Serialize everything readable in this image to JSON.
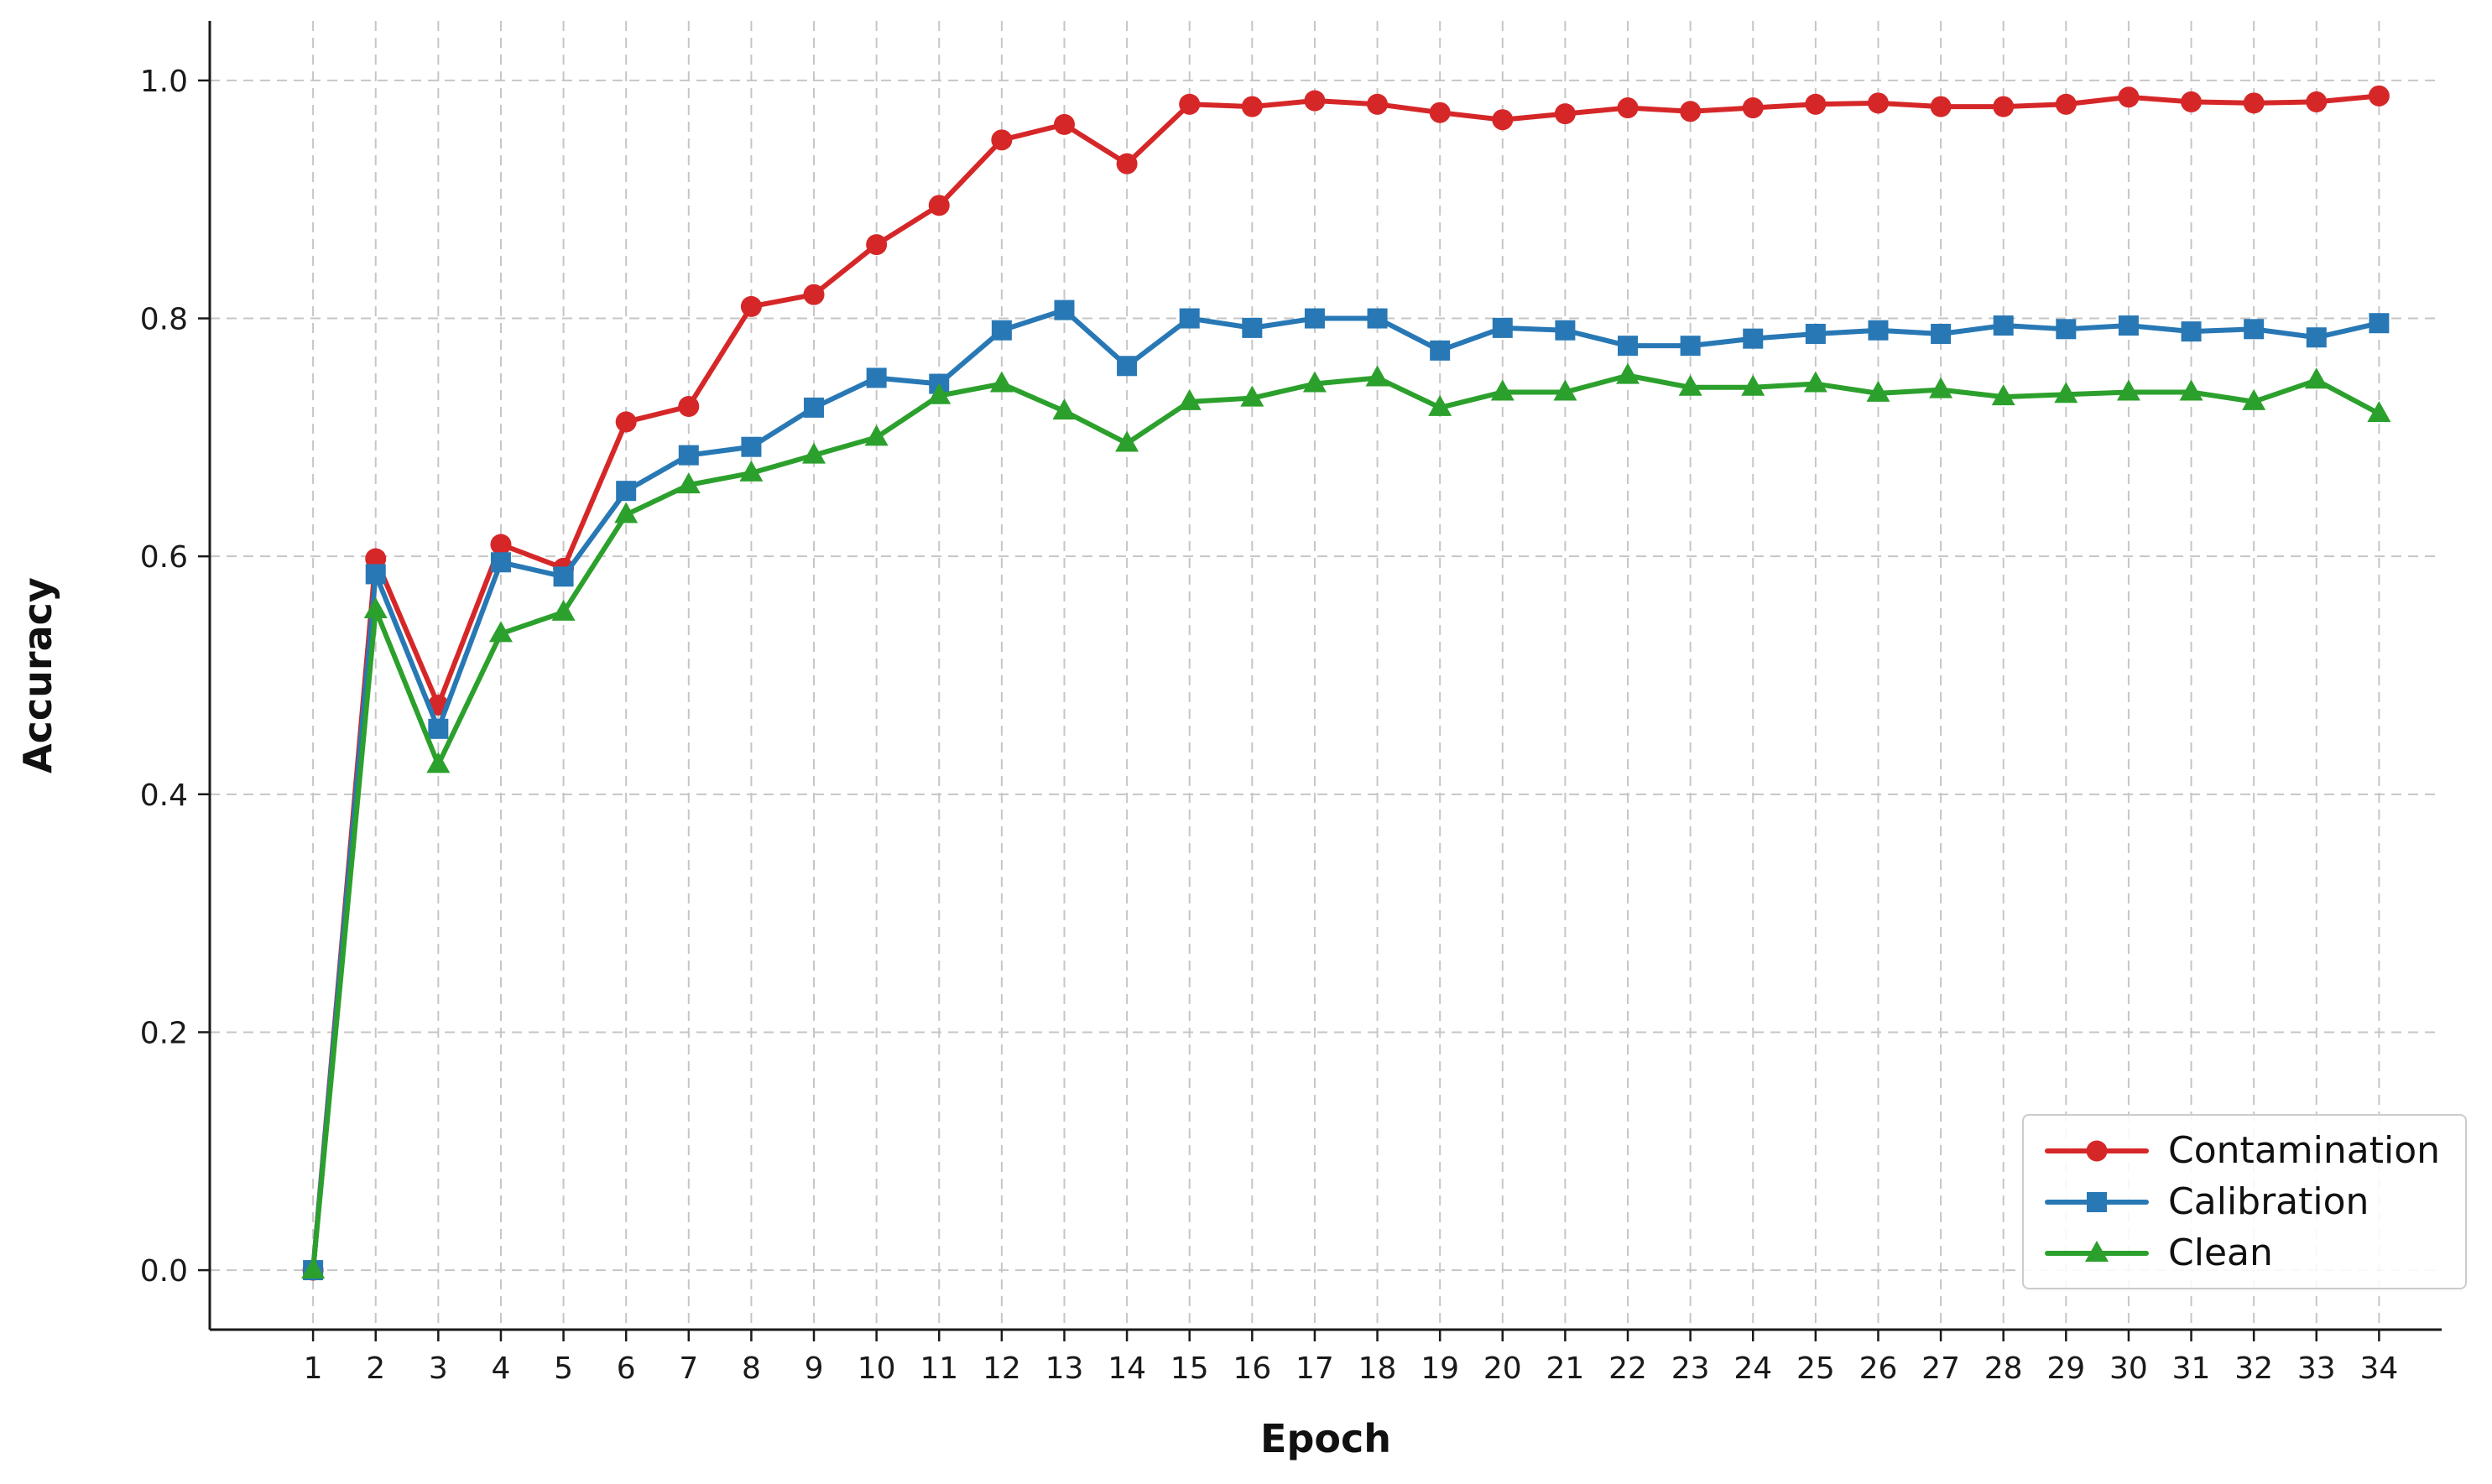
{
  "chart_data": {
    "type": "line",
    "title": "",
    "xlabel": "Epoch",
    "ylabel": "Accuracy",
    "x": [
      1,
      2,
      3,
      4,
      5,
      6,
      7,
      8,
      9,
      10,
      11,
      12,
      13,
      14,
      15,
      16,
      17,
      18,
      19,
      20,
      21,
      22,
      23,
      24,
      25,
      26,
      27,
      28,
      29,
      30,
      31,
      32,
      33,
      34
    ],
    "yticks": [
      0.0,
      0.2,
      0.4,
      0.6,
      0.8,
      1.0
    ],
    "ylim": [
      0.0,
      1.0
    ],
    "grid": "dashed-both-axes",
    "grid_color": "#c6c6c6",
    "spine_color": "#1a1a1a",
    "legend_position": "lower right",
    "series": [
      {
        "name": "Contamination",
        "color": "#d62728",
        "marker": "circle",
        "values": [
          0.0,
          0.598,
          0.475,
          0.61,
          0.59,
          0.713,
          0.726,
          0.81,
          0.82,
          0.862,
          0.895,
          0.95,
          0.963,
          0.93,
          0.98,
          0.978,
          0.983,
          0.98,
          0.973,
          0.967,
          0.972,
          0.977,
          0.974,
          0.977,
          0.98,
          0.981,
          0.978,
          0.978,
          0.98,
          0.986,
          0.982,
          0.981,
          0.982,
          0.987
        ]
      },
      {
        "name": "Calibration",
        "color": "#2878b5",
        "marker": "square",
        "values": [
          0.0,
          0.585,
          0.455,
          0.595,
          0.583,
          0.655,
          0.685,
          0.692,
          0.725,
          0.75,
          0.745,
          0.79,
          0.807,
          0.76,
          0.8,
          0.792,
          0.8,
          0.8,
          0.773,
          0.792,
          0.79,
          0.777,
          0.777,
          0.783,
          0.787,
          0.79,
          0.787,
          0.794,
          0.791,
          0.794,
          0.789,
          0.791,
          0.784,
          0.796
        ]
      },
      {
        "name": "Clean",
        "color": "#2ca02c",
        "marker": "triangle",
        "values": [
          0.0,
          0.555,
          0.425,
          0.535,
          0.553,
          0.635,
          0.66,
          0.67,
          0.685,
          0.7,
          0.735,
          0.745,
          0.722,
          0.695,
          0.73,
          0.733,
          0.745,
          0.75,
          0.725,
          0.738,
          0.738,
          0.752,
          0.742,
          0.742,
          0.745,
          0.737,
          0.74,
          0.734,
          0.736,
          0.738,
          0.738,
          0.73,
          0.748,
          0.72
        ]
      }
    ]
  }
}
